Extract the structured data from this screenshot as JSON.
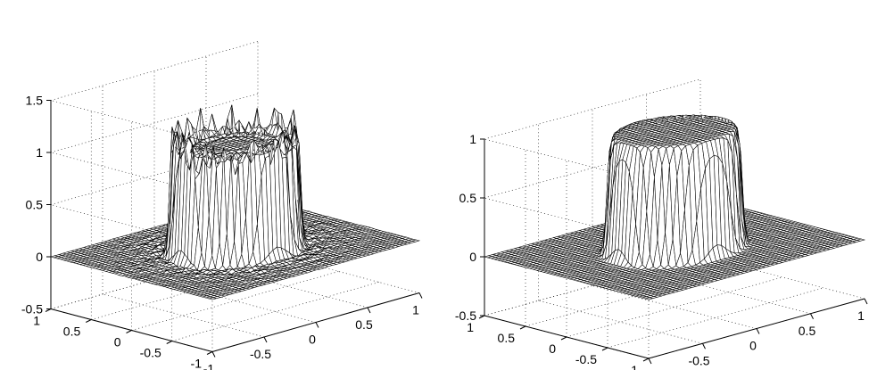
{
  "chart_data": [
    {
      "type": "surface",
      "title": "",
      "xlabel": "",
      "ylabel": "",
      "zlabel": "",
      "xlim": [
        -1,
        1
      ],
      "ylim": [
        -1,
        1
      ],
      "zlim": [
        -0.5,
        1.5
      ],
      "x_ticks": [
        "-1",
        "-0.5",
        "0",
        "0.5",
        "1"
      ],
      "y_ticks": [
        "-1",
        "-0.5",
        "0",
        "0.5",
        "1"
      ],
      "z_ticks": [
        "-0.5",
        "0",
        "0.5",
        "1",
        "1.5"
      ],
      "grid": true,
      "surface": {
        "shape": "cylinder",
        "radius": 0.5,
        "base": 0,
        "height": 1,
        "ringing_amplitude": 0.18,
        "peak_max": 1.35,
        "outside_ripple": 0.05,
        "grid_points": 51
      },
      "mesh_color": "#000000",
      "face_color": "#ffffff"
    },
    {
      "type": "surface",
      "title": "",
      "xlabel": "",
      "ylabel": "",
      "zlabel": "",
      "xlim": [
        -1,
        1
      ],
      "ylim": [
        -1,
        1
      ],
      "zlim": [
        -0.5,
        1
      ],
      "x_ticks": [
        "-1",
        "-0.5",
        "0",
        "0.5",
        "1"
      ],
      "y_ticks": [
        "-1",
        "-0.5",
        "0",
        "0.5",
        "1"
      ],
      "z_ticks": [
        "-0.5",
        "0",
        "0.5",
        "1"
      ],
      "grid": true,
      "surface": {
        "shape": "cylinder",
        "radius": 0.5,
        "base": 0,
        "height": 1,
        "ringing_amplitude": 0.0,
        "peak_max": 1.0,
        "outside_ripple": 0.0,
        "grid_points": 51
      },
      "mesh_color": "#000000",
      "face_color": "#ffffff"
    }
  ]
}
